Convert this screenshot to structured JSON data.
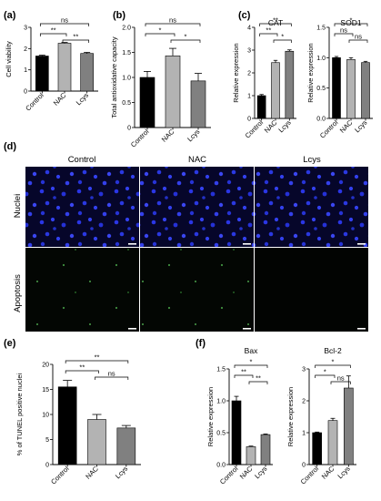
{
  "panels": {
    "a": "(a)",
    "b": "(b)",
    "c": "(c)",
    "d": "(d)",
    "e": "(e)",
    "f": "(f)"
  },
  "micrograph": {
    "columns": [
      "Control",
      "NAC",
      "Lcys"
    ],
    "rows": [
      "Nuclei",
      "Apoptosis"
    ]
  },
  "chart_data": [
    {
      "id": "a",
      "type": "bar",
      "categories": [
        "Control",
        "NAC",
        "Lcys"
      ],
      "values": [
        1.65,
        2.25,
        1.77
      ],
      "errors": [
        0.04,
        0.04,
        0.05
      ],
      "colors": [
        "#000000",
        "#b3b3b3",
        "#808080"
      ],
      "ylabel": "Cell viability",
      "ylim": [
        0,
        3
      ],
      "yticks": [
        "0",
        "1",
        "2",
        "3"
      ],
      "significance": [
        {
          "from": 0,
          "to": 1,
          "label": "**"
        },
        {
          "from": 1,
          "to": 2,
          "label": "**"
        },
        {
          "from": 0,
          "to": 2,
          "label": "ns"
        }
      ]
    },
    {
      "id": "b",
      "type": "bar",
      "categories": [
        "Control",
        "NAC",
        "Lcys"
      ],
      "values": [
        1.0,
        1.43,
        0.93
      ],
      "errors": [
        0.12,
        0.15,
        0.15
      ],
      "colors": [
        "#000000",
        "#b3b3b3",
        "#808080"
      ],
      "ylabel": "Total antioxidative capacity",
      "ylim": [
        0,
        2.0
      ],
      "yticks": [
        "0",
        "0.5",
        "1.0",
        "1.5",
        "2.0"
      ],
      "significance": [
        {
          "from": 0,
          "to": 1,
          "label": "*"
        },
        {
          "from": 1,
          "to": 2,
          "label": "*"
        },
        {
          "from": 0,
          "to": 2,
          "label": "ns"
        }
      ]
    },
    {
      "id": "c1",
      "type": "bar",
      "title": "CAT",
      "categories": [
        "Control",
        "NAC",
        "Lcys"
      ],
      "values": [
        1.0,
        2.45,
        2.95
      ],
      "errors": [
        0.05,
        0.1,
        0.06
      ],
      "colors": [
        "#000000",
        "#b3b3b3",
        "#808080"
      ],
      "ylabel": "Relative expression",
      "ylim": [
        0,
        4
      ],
      "yticks": [
        "0",
        "1",
        "2",
        "3",
        "4"
      ],
      "significance": [
        {
          "from": 0,
          "to": 1,
          "label": "**"
        },
        {
          "from": 1,
          "to": 2,
          "label": "*"
        },
        {
          "from": 0,
          "to": 2,
          "label": "**"
        }
      ]
    },
    {
      "id": "c2",
      "type": "bar",
      "title": "SOD1",
      "categories": [
        "Control",
        "NAC",
        "Lcys"
      ],
      "values": [
        1.0,
        0.97,
        0.92
      ],
      "errors": [
        0.02,
        0.03,
        0.02
      ],
      "colors": [
        "#000000",
        "#b3b3b3",
        "#808080"
      ],
      "ylabel": "Relative expression",
      "ylim": [
        0,
        1.5
      ],
      "yticks": [
        "0.0",
        "0.5",
        "1.0",
        "1.5"
      ],
      "significance": [
        {
          "from": 0,
          "to": 1,
          "label": "ns"
        },
        {
          "from": 1,
          "to": 2,
          "label": "ns"
        },
        {
          "from": 0,
          "to": 2,
          "label": "*"
        }
      ]
    },
    {
      "id": "e",
      "type": "bar",
      "categories": [
        "Control",
        "NAC",
        "Lcys"
      ],
      "values": [
        15.5,
        9.0,
        7.3
      ],
      "errors": [
        1.3,
        1.0,
        0.5
      ],
      "colors": [
        "#000000",
        "#b3b3b3",
        "#808080"
      ],
      "ylabel": "% of TUNEL positive nuclei",
      "ylim": [
        0,
        20
      ],
      "yticks": [
        "0",
        "5",
        "10",
        "15",
        "20"
      ],
      "significance": [
        {
          "from": 0,
          "to": 1,
          "label": "**"
        },
        {
          "from": 1,
          "to": 2,
          "label": "ns"
        },
        {
          "from": 0,
          "to": 2,
          "label": "**"
        }
      ]
    },
    {
      "id": "f1",
      "type": "bar",
      "title": "Bax",
      "categories": [
        "Control",
        "NAC",
        "Lcys"
      ],
      "values": [
        1.0,
        0.28,
        0.47
      ],
      "errors": [
        0.07,
        0.01,
        0.01
      ],
      "colors": [
        "#000000",
        "#b3b3b3",
        "#808080"
      ],
      "ylabel": "Relative expression",
      "ylim": [
        0,
        1.5
      ],
      "yticks": [
        "0.0",
        "0.5",
        "1.0",
        "1.5"
      ],
      "significance": [
        {
          "from": 0,
          "to": 1,
          "label": "**"
        },
        {
          "from": 1,
          "to": 2,
          "label": "**"
        },
        {
          "from": 0,
          "to": 2,
          "label": "*"
        }
      ]
    },
    {
      "id": "f2",
      "type": "bar",
      "title": "Bcl-2",
      "categories": [
        "Control",
        "NAC",
        "Lcys"
      ],
      "values": [
        1.0,
        1.38,
        2.4
      ],
      "errors": [
        0.02,
        0.07,
        0.38
      ],
      "colors": [
        "#000000",
        "#b3b3b3",
        "#808080"
      ],
      "ylabel": "Relative expression",
      "ylim": [
        0,
        3
      ],
      "yticks": [
        "0",
        "1",
        "2",
        "3"
      ],
      "significance": [
        {
          "from": 0,
          "to": 1,
          "label": "*"
        },
        {
          "from": 1,
          "to": 2,
          "label": "ns"
        },
        {
          "from": 0,
          "to": 2,
          "label": "*"
        }
      ]
    }
  ]
}
